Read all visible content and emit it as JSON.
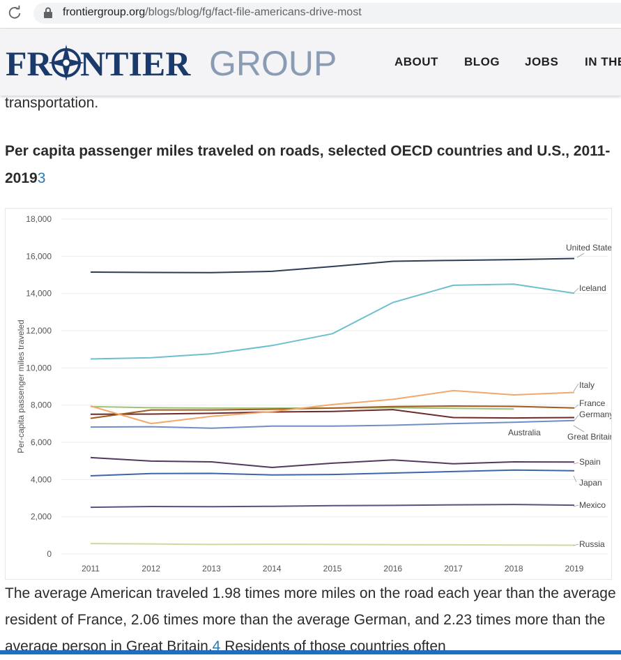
{
  "browser": {
    "url_domain": "frontiergroup.org",
    "url_path": "/blogs/blog/fg/fact-file-americans-drive-most"
  },
  "site": {
    "logo_word1": "FR",
    "logo_word2": "NTIER",
    "logo_word3": "GROUP",
    "nav": [
      "ABOUT",
      "BLOG",
      "JOBS",
      "IN THE"
    ]
  },
  "article": {
    "prev_text": "transportation.",
    "chart_heading": "Per capita passenger miles traveled on roads, selected OECD countries and U.S., 2011-2019",
    "chart_heading_footnote": "3",
    "body_before": "The average American traveled 1.98 times more miles on the road each year than the average resident of France, 2.06 times more than the average German, and 2.23 times more than the average person in Great Britain.",
    "body_footnote": "4",
    "body_after": " Residents of those countries often"
  },
  "chart_data": {
    "type": "line",
    "ylabel": "Per-capita passenger miles traveled",
    "xlabel": "",
    "x": [
      2011,
      2012,
      2013,
      2014,
      2015,
      2016,
      2017,
      2018,
      2019
    ],
    "ylim": [
      0,
      18000
    ],
    "yticks": [
      0,
      2000,
      4000,
      6000,
      8000,
      10000,
      12000,
      14000,
      16000,
      18000
    ],
    "ytick_labels": [
      "0",
      "2,000",
      "4,000",
      "6,000",
      "8,000",
      "10,000",
      "12,000",
      "14,000",
      "16,000",
      "18,000"
    ],
    "grid": true,
    "series": [
      {
        "name": "United States",
        "color": "#2c3e55",
        "values": [
          15150,
          15130,
          15120,
          15190,
          15450,
          15730,
          15780,
          15820,
          15880
        ]
      },
      {
        "name": "Iceland",
        "color": "#6cbfcc",
        "values": [
          10480,
          10550,
          10760,
          11200,
          11840,
          13520,
          14440,
          14500,
          14010
        ]
      },
      {
        "name": "Italy",
        "color": "#f2a86a",
        "values": [
          7950,
          7010,
          7400,
          7650,
          8030,
          8310,
          8780,
          8550,
          8680
        ]
      },
      {
        "name": "France",
        "color": "#a05a1c",
        "values": [
          7290,
          7740,
          7740,
          7780,
          7840,
          7920,
          7950,
          7930,
          7850
        ]
      },
      {
        "name": "Germany",
        "color": "#6e2a2a",
        "values": [
          7510,
          7520,
          7560,
          7630,
          7660,
          7760,
          7330,
          7310,
          7330
        ]
      },
      {
        "name": "Australia",
        "color": "#9ec27a",
        "values": [
          7920,
          7860,
          7840,
          7840,
          7840,
          7860,
          7830,
          7790,
          null
        ]
      },
      {
        "name": "Great Britain",
        "color": "#6f8ec8",
        "values": [
          6820,
          6840,
          6760,
          6870,
          6870,
          6920,
          7010,
          7080,
          7170
        ]
      },
      {
        "name": "Spain",
        "color": "#55385f",
        "values": [
          5180,
          4990,
          4950,
          4650,
          4880,
          5050,
          4850,
          4950,
          4940
        ]
      },
      {
        "name": "Japan",
        "color": "#3d66a8",
        "values": [
          4200,
          4320,
          4330,
          4250,
          4270,
          4350,
          4430,
          4510,
          4470
        ]
      },
      {
        "name": "Mexico",
        "color": "#5e4e82",
        "values": [
          2510,
          2550,
          2540,
          2560,
          2600,
          2610,
          2640,
          2660,
          2620
        ]
      },
      {
        "name": "Russia",
        "color": "#cfd99d",
        "values": [
          560,
          540,
          510,
          520,
          510,
          500,
          490,
          480,
          470
        ]
      }
    ]
  }
}
